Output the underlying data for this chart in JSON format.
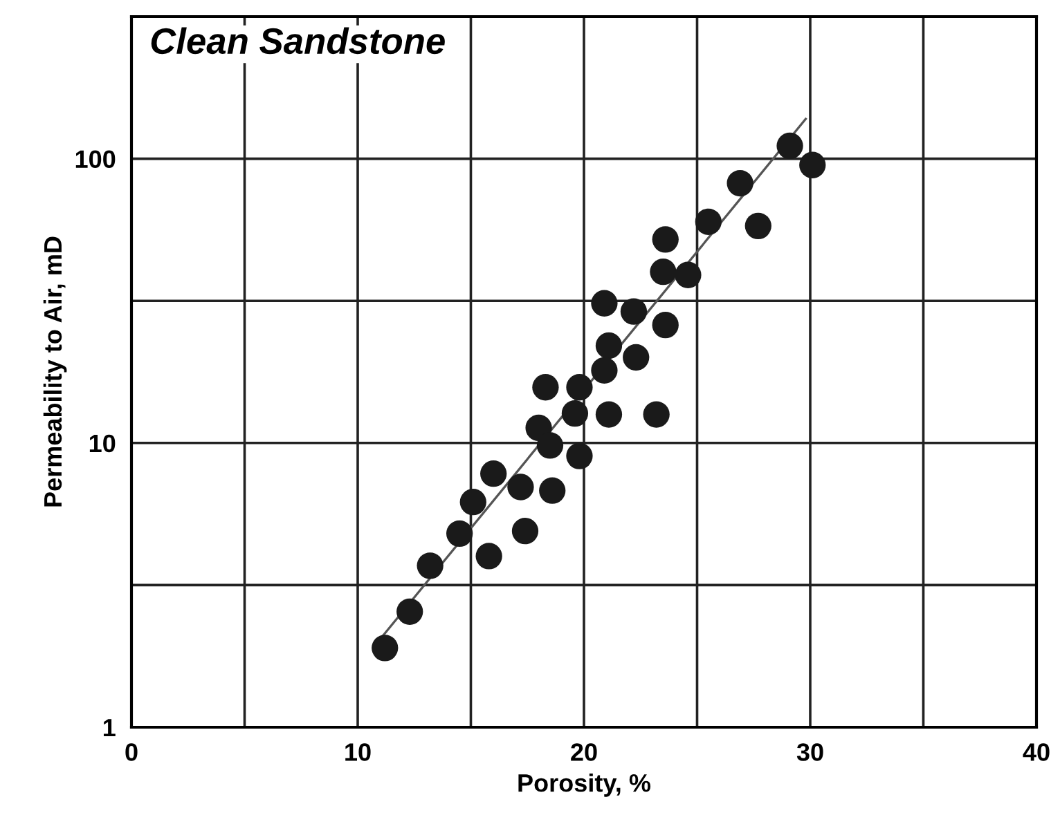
{
  "chart_data": {
    "type": "scatter",
    "xlabel": "Porosity, %",
    "ylabel": "Permeability to Air, mD",
    "annotations": [
      "Clean Sandstone"
    ],
    "series": [
      {
        "color": "#1a1a1a",
        "marker": "circle",
        "x": [
          29.1,
          30.1,
          26.9,
          25.5,
          27.7,
          23.6,
          23.5,
          24.6,
          20.9,
          22.2,
          23.6,
          21.1,
          22.3,
          20.9,
          18.3,
          19.8,
          19.6,
          21.1,
          23.2,
          18.0,
          18.5,
          19.8,
          16.0,
          17.2,
          18.6,
          15.1,
          14.5,
          17.4,
          15.8,
          13.2,
          12.3,
          11.2
        ],
        "values": [
          111,
          95,
          82,
          60,
          58,
          52,
          40,
          39,
          31,
          29,
          26,
          22,
          20,
          18,
          15.7,
          15.7,
          12.7,
          12.6,
          12.6,
          11.3,
          9.8,
          9.0,
          7.8,
          7.0,
          6.8,
          6.2,
          4.8,
          4.9,
          4.0,
          3.7,
          2.55,
          1.9
        ]
      },
      {
        "type": "line",
        "color": "#555555",
        "marker": "none",
        "line_style": "solid",
        "x": [
          10.9,
          29.8
        ],
        "values": [
          2.0,
          138
        ]
      }
    ],
    "log": "y",
    "xlim": [
      0,
      40
    ],
    "xticks": [
      0,
      {
        "value": 5,
        "label": null
      },
      10,
      {
        "value": 15,
        "label": null
      },
      20,
      {
        "value": 25,
        "label": null
      },
      30,
      {
        "value": 35,
        "label": null
      },
      40
    ],
    "ylim": [
      1,
      316.2
    ],
    "yticks": [
      1,
      {
        "value": 3.162,
        "label": null
      },
      10,
      {
        "value": 31.62,
        "label": null
      },
      100,
      {
        "value": 316.2,
        "label": null
      }
    ],
    "grid": true,
    "legend": false
  }
}
